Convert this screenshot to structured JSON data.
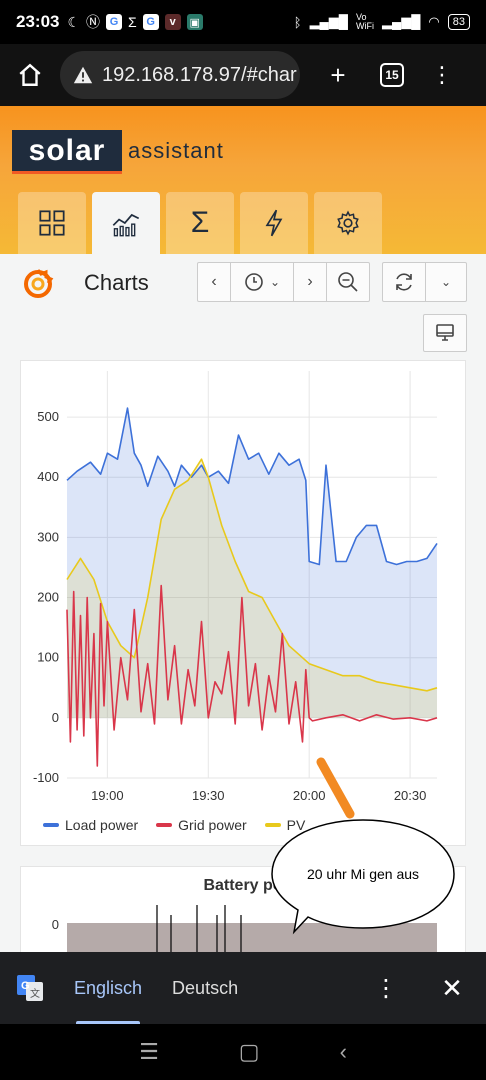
{
  "status_bar": {
    "time": "23:03",
    "net_label_top": "Vo",
    "net_label_bottom": "WiFi",
    "battery": "83"
  },
  "browser": {
    "url": "192.168.178.97/#char",
    "tab_count": "15"
  },
  "brand": {
    "name_part1": "solar",
    "name_part2": "assistant"
  },
  "nav_tabs": [
    {
      "icon": "grid-icon",
      "active": false
    },
    {
      "icon": "chart-icon",
      "active": true
    },
    {
      "icon": "sigma-icon",
      "active": false
    },
    {
      "icon": "lightning-icon",
      "active": false
    },
    {
      "icon": "gear-icon",
      "active": false
    }
  ],
  "dashboard": {
    "title": "Charts"
  },
  "chart_data": [
    {
      "type": "line",
      "x_tick_labels": [
        "19:00",
        "19:30",
        "20:00",
        "20:30"
      ],
      "y_ticks": [
        -100,
        0,
        100,
        200,
        300,
        400,
        500
      ],
      "ylim": [
        -100,
        560
      ],
      "grid": true,
      "legend_placement": "bottom",
      "series": [
        {
          "name": "Load power",
          "color": "#3d71d9",
          "fill": true,
          "x": [
            "18:48",
            "18:51",
            "18:55",
            "18:58",
            "19:00",
            "19:03",
            "19:06",
            "19:08",
            "19:10",
            "19:12",
            "19:15",
            "19:18",
            "19:20",
            "19:22",
            "19:25",
            "19:28",
            "19:30",
            "19:33",
            "19:36",
            "19:39",
            "19:42",
            "19:45",
            "19:48",
            "19:51",
            "19:54",
            "19:57",
            "19:59",
            "20:00",
            "20:03",
            "20:05",
            "20:08",
            "20:11",
            "20:14",
            "20:17",
            "20:20",
            "20:23",
            "20:26",
            "20:29",
            "20:32",
            "20:35",
            "20:38"
          ],
          "y": [
            395,
            410,
            425,
            405,
            440,
            430,
            515,
            440,
            420,
            385,
            435,
            410,
            385,
            420,
            400,
            420,
            400,
            410,
            390,
            470,
            430,
            440,
            405,
            440,
            420,
            430,
            395,
            260,
            255,
            420,
            260,
            260,
            300,
            320,
            320,
            260,
            255,
            260,
            260,
            265,
            290
          ]
        },
        {
          "name": "Grid power",
          "color": "#d9364a",
          "fill": false,
          "x": [
            "18:48",
            "18:49",
            "18:50",
            "18:51",
            "18:52",
            "18:53",
            "18:54",
            "18:55",
            "18:56",
            "18:57",
            "18:58",
            "18:59",
            "19:00",
            "19:02",
            "19:04",
            "19:06",
            "19:08",
            "19:10",
            "19:12",
            "19:14",
            "19:16",
            "19:18",
            "19:20",
            "19:22",
            "19:24",
            "19:26",
            "19:28",
            "19:30",
            "19:32",
            "19:34",
            "19:36",
            "19:38",
            "19:40",
            "19:42",
            "19:44",
            "19:46",
            "19:48",
            "19:50",
            "19:52",
            "19:54",
            "19:56",
            "19:58",
            "19:59",
            "20:00",
            "20:01",
            "20:05",
            "20:10",
            "20:15",
            "20:20",
            "20:25",
            "20:30",
            "20:35",
            "20:38"
          ],
          "y": [
            180,
            -40,
            210,
            -20,
            170,
            -30,
            200,
            0,
            140,
            -80,
            190,
            20,
            160,
            -20,
            100,
            30,
            180,
            10,
            90,
            -10,
            220,
            30,
            120,
            -10,
            80,
            20,
            160,
            0,
            60,
            40,
            110,
            -10,
            200,
            20,
            90,
            -20,
            70,
            10,
            140,
            -10,
            60,
            -40,
            80,
            0,
            -5,
            0,
            5,
            -5,
            5,
            -2,
            0,
            -5,
            0
          ]
        },
        {
          "name": "PV",
          "color": "#e8c91c",
          "fill": true,
          "x": [
            "18:48",
            "18:52",
            "18:56",
            "19:00",
            "19:04",
            "19:08",
            "19:12",
            "19:16",
            "19:20",
            "19:24",
            "19:28",
            "19:30",
            "19:34",
            "19:38",
            "19:42",
            "19:46",
            "19:50",
            "19:54",
            "19:58",
            "20:00",
            "20:05",
            "20:10",
            "20:15",
            "20:20",
            "20:25",
            "20:30",
            "20:35",
            "20:38"
          ],
          "y": [
            230,
            265,
            230,
            160,
            120,
            100,
            200,
            330,
            380,
            395,
            430,
            400,
            320,
            260,
            210,
            200,
            160,
            120,
            100,
            90,
            80,
            70,
            70,
            60,
            55,
            50,
            45,
            50
          ]
        }
      ]
    },
    {
      "type": "bar",
      "title": "Battery po",
      "y_ticks": [
        0
      ],
      "x_tick_labels": [],
      "series": [
        {
          "name": "",
          "color": "#9c8e8c"
        }
      ]
    }
  ],
  "annotation": {
    "text": "20 uhr Mi gen aus"
  },
  "translate_bar": {
    "source_lang": "Englisch",
    "target_lang": "Deutsch"
  }
}
